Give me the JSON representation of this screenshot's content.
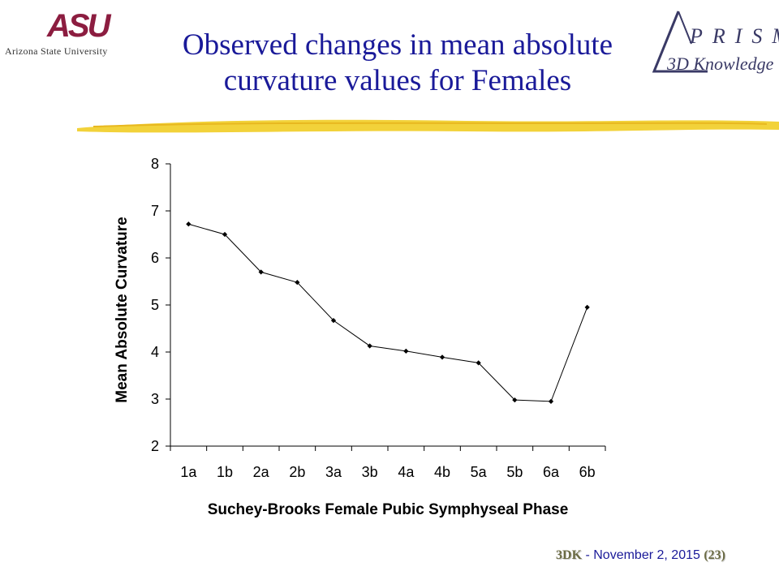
{
  "header": {
    "asu_mark": "ASU",
    "asu_name": "Arizona State University",
    "prism_text": "PRISM",
    "prism_sub": "3D Knowledge",
    "title_line1": "Observed changes in mean absolute",
    "title_line2": "curvature values for Females"
  },
  "footer": {
    "brand": "3DK",
    "separator": " - ",
    "date": "November 2, 2015",
    "page": "(23)"
  },
  "colors": {
    "title": "#1a1a99",
    "asu": "#8c1d40",
    "brush": "#f2d23a",
    "line": "#000000"
  },
  "chart_data": {
    "type": "line",
    "categories": [
      "1a",
      "1b",
      "2a",
      "2b",
      "3a",
      "3b",
      "4a",
      "4b",
      "5a",
      "5b",
      "6a",
      "6b"
    ],
    "series": [
      {
        "values": [
          6.72,
          6.5,
          5.7,
          5.48,
          4.67,
          4.13,
          4.02,
          3.89,
          3.77,
          2.98,
          2.95,
          4.95
        ]
      }
    ],
    "title": "",
    "xlabel": "Suchey-Brooks Female Pubic Symphyseal Phase",
    "ylabel": "Mean Absolute Curvature",
    "ylim": [
      2,
      8
    ],
    "yticks": [
      2,
      3,
      4,
      5,
      6,
      7,
      8
    ],
    "grid": false
  }
}
